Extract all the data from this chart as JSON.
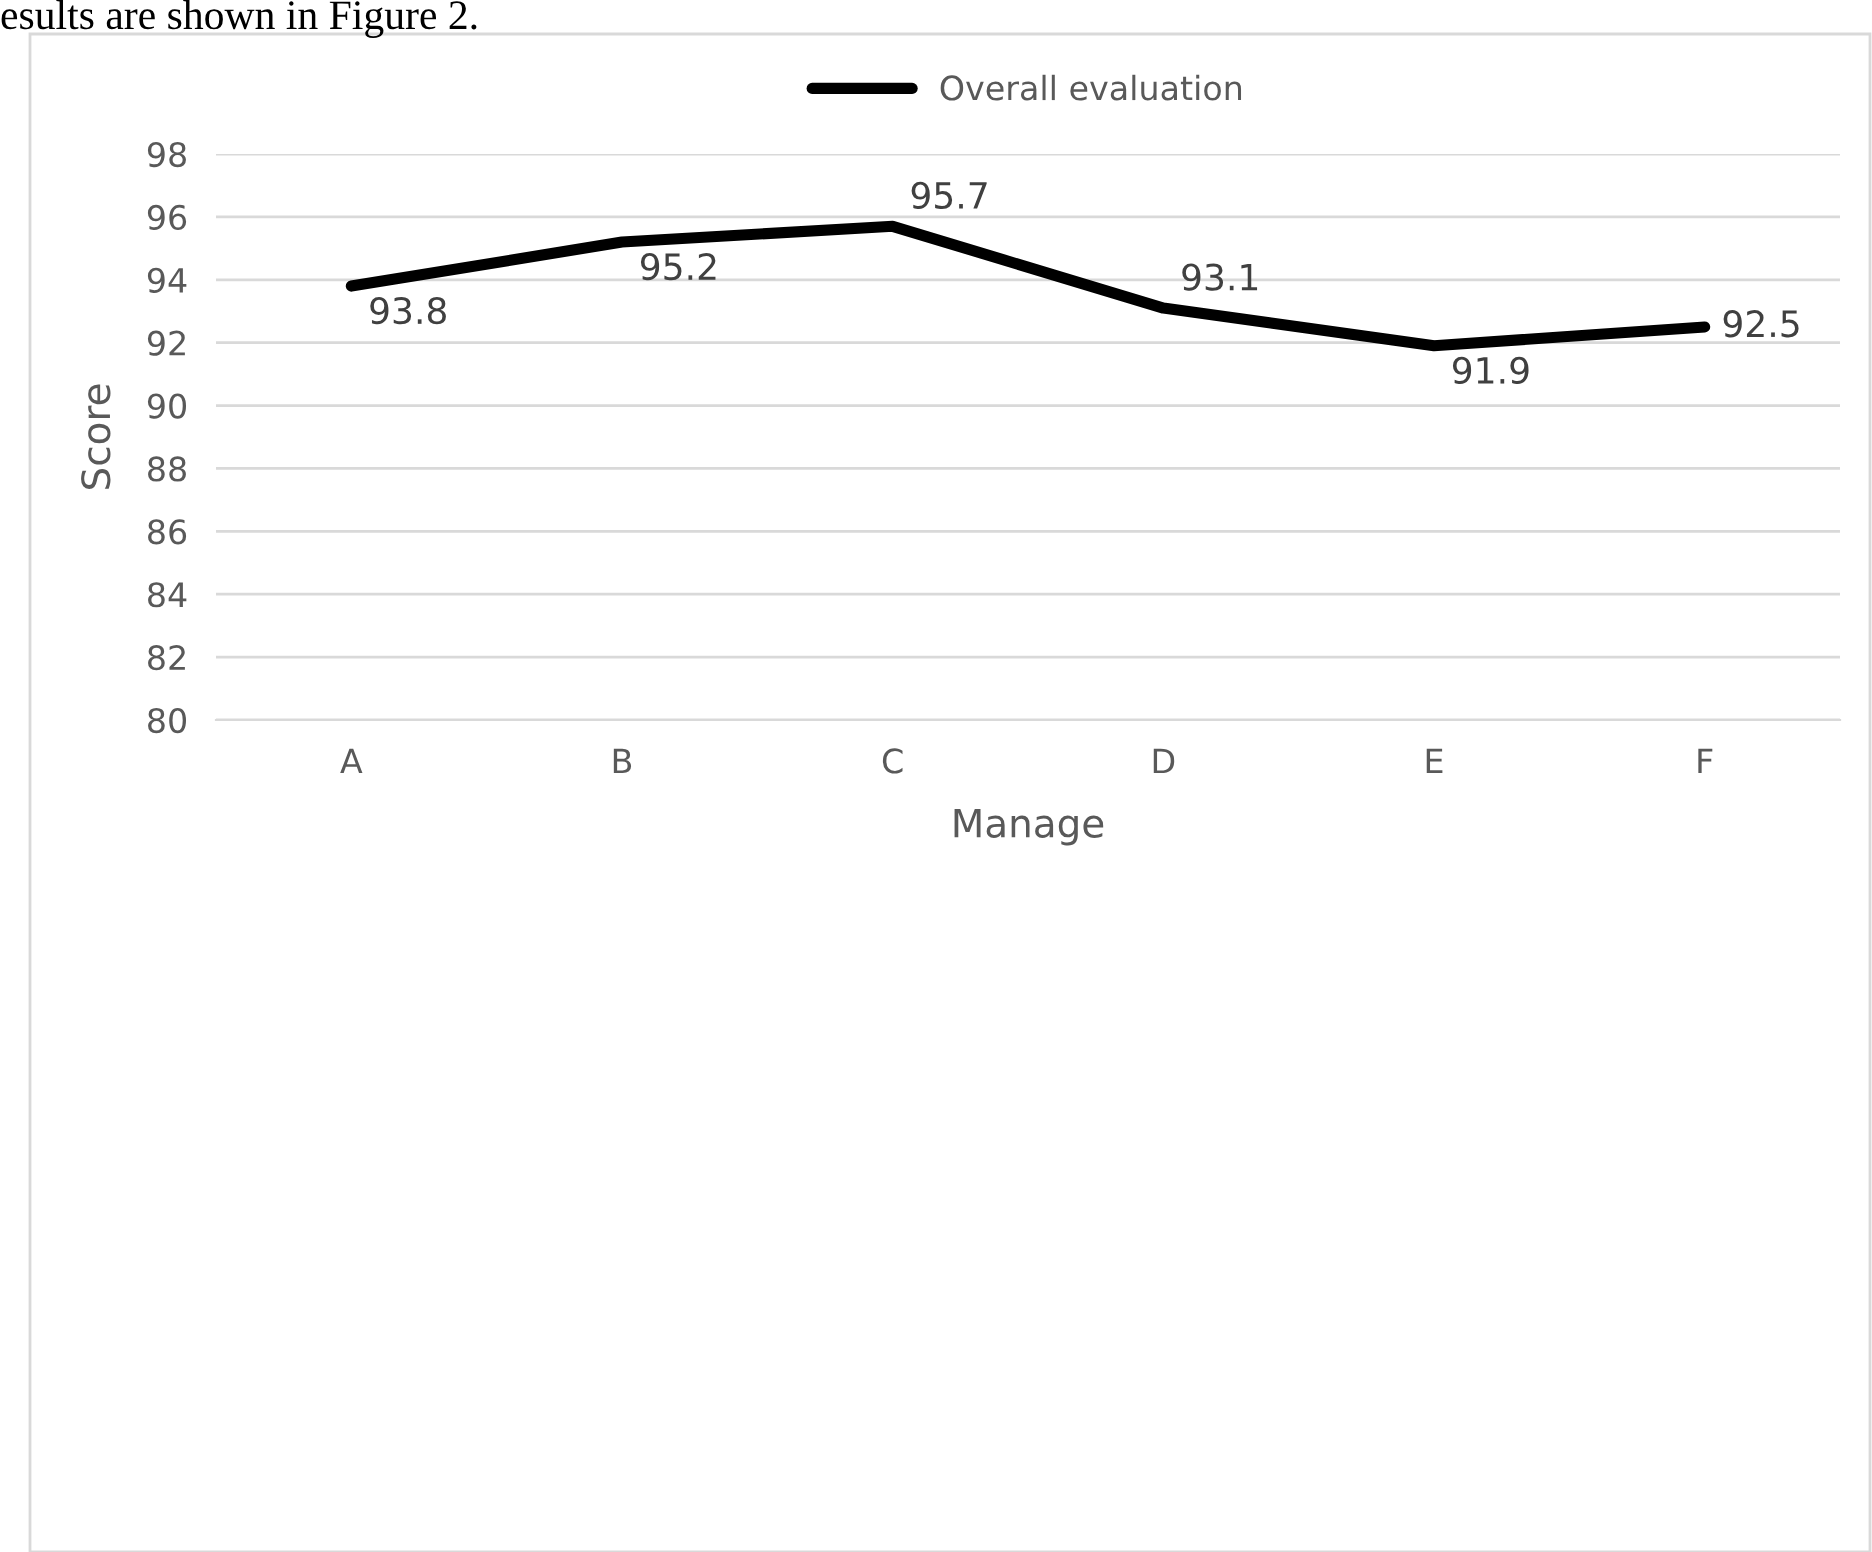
{
  "chart_data": {
    "type": "line",
    "xlabel": "Manage",
    "ylabel": "Score",
    "categories": [
      "A",
      "B",
      "C",
      "D",
      "E",
      "F"
    ],
    "series": [
      {
        "name": "Overall evaluation",
        "color": "#000000",
        "values": [
          93.8,
          95.2,
          95.7,
          93.1,
          91.9,
          92.5
        ]
      }
    ],
    "ylim": [
      80,
      98
    ],
    "yticks": [
      80,
      82,
      84,
      86,
      88,
      90,
      92,
      94,
      96,
      98
    ],
    "grid": "y",
    "legend": "top",
    "data_labels": true,
    "marker": "none",
    "line_style": "solid",
    "annotations": [
      "esults are shown in Figure 2."
    ]
  }
}
